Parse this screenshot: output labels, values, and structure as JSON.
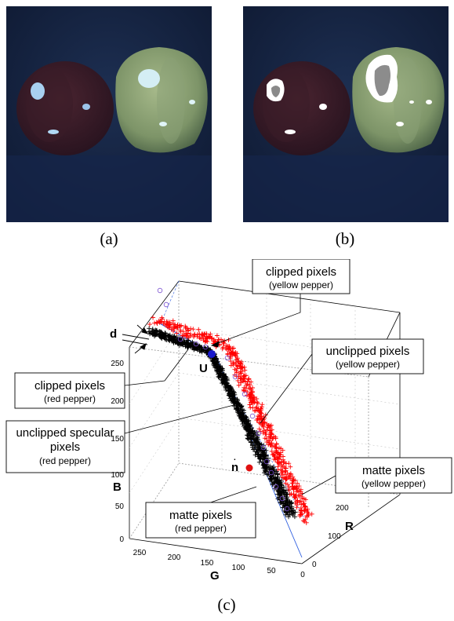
{
  "panels": {
    "a_label": "(a)",
    "b_label": "(b)",
    "c_label": "(c)"
  },
  "plot": {
    "axes": {
      "x_label": "G",
      "y_label": "R",
      "z_label": "B"
    },
    "g_ticks": [
      "250",
      "200",
      "150",
      "100",
      "50",
      "0"
    ],
    "r_ticks": [
      "200",
      "100",
      "0"
    ],
    "b_ticks": [
      "250",
      "200",
      "150",
      "100",
      "50",
      "0"
    ],
    "markers": {
      "d": "d",
      "u": "U",
      "n": "n"
    },
    "annotations": [
      {
        "title": "clipped pixels",
        "sub": "(yellow pepper)"
      },
      {
        "title": "unclipped pixels",
        "sub": "(yellow pepper)"
      },
      {
        "title": "clipped pixels",
        "sub": "(red pepper)"
      },
      {
        "title": "unclipped specular",
        "title2": "pixels",
        "sub": "(red pepper)"
      },
      {
        "title": "matte pixels",
        "sub": "(yellow pepper)"
      },
      {
        "title": "matte pixels",
        "sub": "(red pepper)"
      }
    ]
  },
  "colors": {
    "red_series": "#ff0000",
    "black_series": "#000000",
    "u_marker": "#1a1acc",
    "n_marker": "#e01010",
    "guide_line": "#3060e0"
  }
}
